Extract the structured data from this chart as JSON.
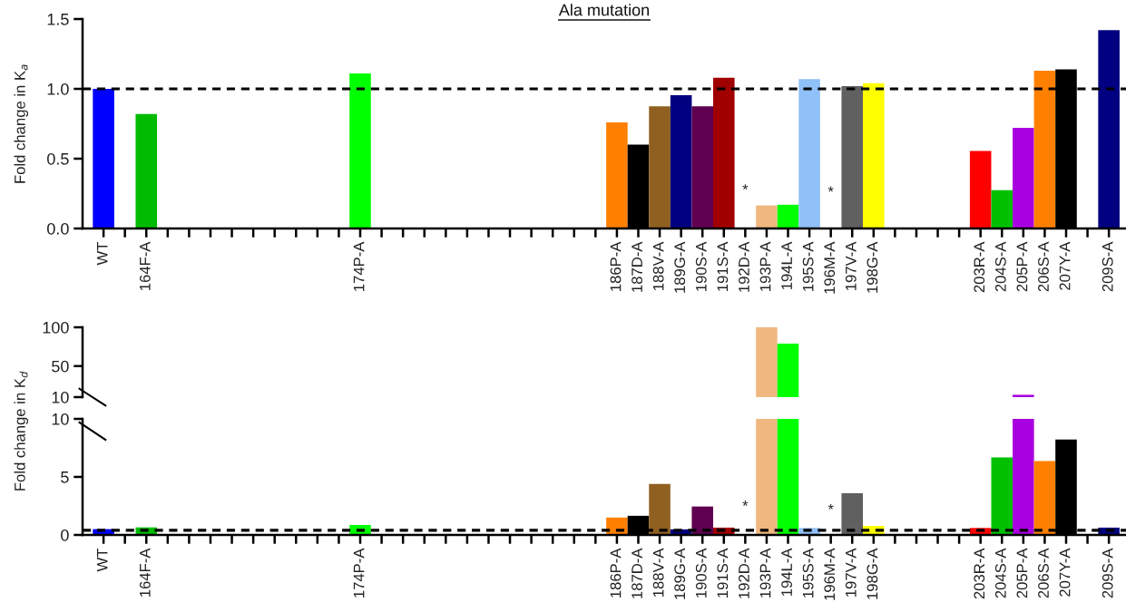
{
  "chart_data": [
    {
      "type": "bar",
      "title": "Ala mutation",
      "ylabel": "Fold change in K$_{a}$",
      "categories": [
        "WT",
        null,
        "164F-A",
        null,
        null,
        null,
        null,
        null,
        null,
        null,
        null,
        null,
        "174P-A",
        null,
        null,
        null,
        null,
        null,
        null,
        null,
        null,
        null,
        null,
        null,
        "186P-A",
        "187D-A",
        "188V-A",
        "189G-A",
        "190S-A",
        "191S-A",
        "192D-A",
        "193P-A",
        "194L-A",
        "195S-A",
        "196M-A",
        "197V-A",
        "198G-A",
        null,
        null,
        null,
        null,
        "203R-A",
        "204S-A",
        "205P-A",
        "206S-A",
        "207Y-A",
        null,
        "209S-A"
      ],
      "values": [
        1.0,
        null,
        0.82,
        null,
        null,
        null,
        null,
        null,
        null,
        null,
        null,
        null,
        1.11,
        null,
        null,
        null,
        null,
        null,
        null,
        null,
        null,
        null,
        null,
        null,
        0.76,
        0.6,
        0.875,
        0.955,
        0.875,
        1.08,
        null,
        0.165,
        0.17,
        1.07,
        null,
        1.02,
        1.04,
        null,
        null,
        null,
        null,
        0.555,
        0.275,
        0.72,
        1.13,
        1.14,
        null,
        1.42
      ],
      "colors": [
        "#0000ff",
        null,
        "#00bb00",
        null,
        null,
        null,
        null,
        null,
        null,
        null,
        null,
        null,
        "#00ff00",
        null,
        null,
        null,
        null,
        null,
        null,
        null,
        null,
        null,
        null,
        null,
        "#ff8000",
        "#000000",
        "#906020",
        "#000080",
        "#600050",
        "#a00000",
        null,
        "#f0b880",
        "#00ff00",
        "#90c0f8",
        null,
        "#606060",
        "#ffff00",
        null,
        null,
        null,
        null,
        "#ff0000",
        "#00c000",
        "#a800e0",
        "#ff8000",
        "#000000",
        null,
        "#000080"
      ],
      "ylim": [
        0,
        1.5
      ],
      "yticks": [
        {
          "value": 0,
          "label": "0.0"
        },
        {
          "value": 0.5,
          "label": "0.5"
        },
        {
          "value": 1.0,
          "label": "1.0"
        },
        {
          "value": 1.5,
          "label": "1.5"
        }
      ],
      "ref_lines": [
        {
          "axis": "y",
          "value": 1.0,
          "color": "#000000",
          "line_style": "dashed"
        }
      ],
      "annotations": [
        "*",
        "*"
      ],
      "grid": false,
      "legend": false
    },
    {
      "type": "bar",
      "tick_labels": "y",
      "categories": [
        null,
        null,
        null,
        null,
        null,
        null,
        null,
        null,
        null,
        null,
        null,
        null,
        null,
        null,
        null,
        null,
        null,
        null,
        null,
        null,
        null,
        null,
        null,
        null,
        null,
        null,
        null,
        null,
        null,
        null,
        null,
        null,
        null,
        null,
        null,
        null,
        null,
        null,
        null,
        null,
        null,
        null,
        null,
        null,
        null,
        null,
        null,
        null
      ],
      "values": [
        null,
        null,
        null,
        null,
        null,
        null,
        null,
        null,
        null,
        null,
        null,
        null,
        null,
        null,
        null,
        null,
        null,
        null,
        null,
        null,
        null,
        null,
        null,
        null,
        null,
        null,
        null,
        null,
        null,
        null,
        null,
        100,
        79,
        null,
        null,
        null,
        null,
        null,
        null,
        null,
        null,
        null,
        null,
        13,
        null,
        null,
        null,
        null
      ],
      "colors": [
        null,
        null,
        null,
        null,
        null,
        null,
        null,
        null,
        null,
        null,
        null,
        null,
        null,
        null,
        null,
        null,
        null,
        null,
        null,
        null,
        null,
        null,
        null,
        null,
        null,
        null,
        null,
        null,
        null,
        null,
        null,
        "#f0b880",
        "#00ff00",
        null,
        null,
        null,
        null,
        null,
        null,
        null,
        null,
        null,
        null,
        "#a800e0",
        null,
        null,
        null,
        null
      ],
      "ylim": [
        10,
        100
      ],
      "yticks": [
        10,
        50,
        100
      ],
      "grid": false,
      "legend": false
    },
    {
      "type": "bar",
      "ylabel": "Fold change in K$_{d}$",
      "categories": [
        "WT",
        null,
        "164F-A",
        null,
        null,
        null,
        null,
        null,
        null,
        null,
        null,
        null,
        "174P-A",
        null,
        null,
        null,
        null,
        null,
        null,
        null,
        null,
        null,
        null,
        null,
        "186P-A",
        "187D-A",
        "188V-A",
        "189G-A",
        "190S-A",
        "191S-A",
        "192D-A",
        "193P-A",
        "194L-A",
        "195S-A",
        "196M-A",
        "197V-A",
        "198G-A",
        null,
        null,
        null,
        null,
        "203R-A",
        "204S-A",
        "205P-A",
        "206S-A",
        "207Y-A",
        null,
        "209S-A"
      ],
      "values": [
        0.5,
        null,
        0.65,
        null,
        null,
        null,
        null,
        null,
        null,
        null,
        null,
        null,
        0.86,
        null,
        null,
        null,
        null,
        null,
        null,
        null,
        null,
        null,
        null,
        null,
        1.5,
        1.65,
        4.4,
        0.48,
        2.45,
        0.63,
        null,
        10,
        10,
        0.6,
        null,
        3.6,
        0.78,
        null,
        null,
        null,
        null,
        0.6,
        6.67,
        10,
        6.37,
        8.23,
        null,
        0.63
      ],
      "colors": [
        "#0000ff",
        null,
        "#00bb00",
        null,
        null,
        null,
        null,
        null,
        null,
        null,
        null,
        null,
        "#00ff00",
        null,
        null,
        null,
        null,
        null,
        null,
        null,
        null,
        null,
        null,
        null,
        "#ff8000",
        "#000000",
        "#906020",
        "#000080",
        "#600050",
        "#a00000",
        null,
        "#f0b880",
        "#00ff00",
        "#90c0f8",
        null,
        "#606060",
        "#ffff00",
        null,
        null,
        null,
        null,
        "#ff0000",
        "#00c000",
        "#a800e0",
        "#ff8000",
        "#000000",
        null,
        "#000080"
      ],
      "ylim": [
        0,
        10
      ],
      "yticks": [
        0,
        5,
        10
      ],
      "ref_lines": [
        {
          "axis": "y",
          "value": 0.4,
          "color": "#000000",
          "line_style": "dashed"
        }
      ],
      "annotations": [
        "*",
        "*"
      ],
      "grid": false,
      "legend": false
    }
  ]
}
